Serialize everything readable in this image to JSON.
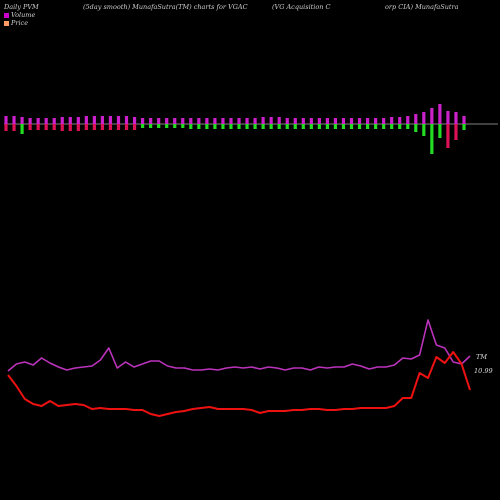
{
  "header": {
    "part1": "Daily PVM",
    "part2": "(5day smooth) MunafaSutra(TM) charts for VGAC",
    "part3": "(VG Acquisition  C",
    "part4": "orp CIA) MunafaSutra"
  },
  "legend": [
    {
      "label": "Volume",
      "color": "#cc00cc"
    },
    {
      "label": "Price",
      "color": "#ff9966"
    }
  ],
  "colors": {
    "volume_up": "#cc22cc",
    "volume_down": "#dd1155",
    "volume_green": "#22dd22",
    "price_line": "#ee1111",
    "pvm_line": "#bb33bb",
    "baseline": "#aaaaaa"
  },
  "chart_data": {
    "type": "bar",
    "title": "Daily PVM (5day smooth) MunafaSutra(TM) charts for VGAC (VG Acquisition Corp CIA) MunafaSutra",
    "volume": {
      "up": [
        8,
        8,
        7,
        6,
        6,
        6,
        6,
        7,
        7,
        7,
        8,
        8,
        8,
        8,
        8,
        8,
        7,
        6,
        6,
        6,
        6,
        6,
        6,
        6,
        6,
        6,
        6,
        6,
        6,
        6,
        6,
        6,
        7,
        7,
        7,
        6,
        6,
        6,
        6,
        6,
        6,
        6,
        6,
        6,
        6,
        6,
        6,
        6,
        7,
        7,
        8,
        10,
        12,
        16,
        20,
        13,
        12,
        8
      ],
      "down": [
        7,
        7,
        10,
        6,
        6,
        6,
        6,
        7,
        7,
        7,
        6,
        6,
        6,
        6,
        6,
        6,
        6,
        4,
        4,
        4,
        4,
        4,
        4,
        5,
        5,
        5,
        5,
        5,
        5,
        5,
        5,
        5,
        5,
        5,
        5,
        5,
        5,
        5,
        5,
        5,
        5,
        5,
        5,
        5,
        5,
        5,
        5,
        5,
        5,
        5,
        5,
        8,
        12,
        30,
        14,
        24,
        16,
        6
      ],
      "down_color": [
        "down",
        "down",
        "green",
        "down",
        "down",
        "down",
        "down",
        "down",
        "down",
        "down",
        "down",
        "down",
        "down",
        "down",
        "down",
        "down",
        "down",
        "green",
        "green",
        "green",
        "green",
        "green",
        "green",
        "green",
        "green",
        "green",
        "green",
        "green",
        "green",
        "green",
        "green",
        "green",
        "green",
        "green",
        "green",
        "green",
        "green",
        "green",
        "green",
        "green",
        "green",
        "green",
        "green",
        "green",
        "green",
        "green",
        "green",
        "green",
        "green",
        "green",
        "green",
        "green",
        "green",
        "green",
        "green",
        "down",
        "down",
        "green"
      ]
    },
    "pvm": [
      371,
      364,
      362,
      365,
      358,
      363,
      367,
      370,
      368,
      367,
      366,
      360,
      348,
      368,
      362,
      367,
      364,
      361,
      361,
      366,
      368,
      368,
      370,
      370,
      369,
      370,
      368,
      367,
      368,
      367,
      369,
      367,
      368,
      370,
      368,
      368,
      370,
      367,
      368,
      367,
      367,
      364,
      366,
      369,
      367,
      367,
      365,
      358,
      359,
      355,
      320,
      345,
      348,
      362,
      364,
      356
    ],
    "price": [
      375,
      386,
      399,
      404,
      406,
      401,
      406,
      405,
      404,
      405,
      409,
      408,
      409,
      409,
      409,
      410,
      410,
      414,
      416,
      414,
      412,
      411,
      409,
      408,
      407,
      409,
      409,
      409,
      409,
      410,
      413,
      411,
      411,
      411,
      410,
      410,
      409,
      409,
      410,
      410,
      409,
      409,
      408,
      408,
      408,
      408,
      406,
      398,
      398,
      373,
      378,
      357,
      363,
      352,
      364,
      390
    ],
    "price_last_label": "10.99",
    "pvm_last_label": "TM"
  }
}
